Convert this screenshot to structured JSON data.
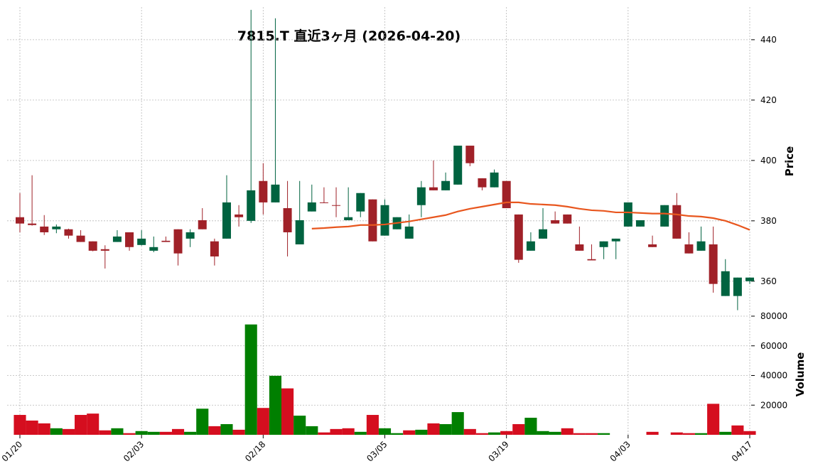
{
  "chart_data": {
    "type": "candlestick",
    "title": "7815.T  直近3ヶ月  (2026-04-20)",
    "categories": [
      "01/20",
      null,
      null,
      null,
      null,
      null,
      null,
      null,
      null,
      null,
      "02/03",
      null,
      null,
      null,
      null,
      null,
      null,
      null,
      null,
      null,
      "02/18",
      null,
      null,
      null,
      null,
      null,
      null,
      null,
      null,
      null,
      "03/05",
      null,
      null,
      null,
      null,
      null,
      null,
      null,
      null,
      null,
      "03/19",
      null,
      null,
      null,
      null,
      null,
      null,
      null,
      null,
      null,
      "04/03",
      null,
      null,
      null,
      null,
      null,
      null,
      null,
      null,
      null,
      "04/17"
    ],
    "open": [
      381.2,
      379.1,
      378.1,
      377.2,
      377.2,
      375.1,
      373.2,
      370.6,
      373.0,
      376.2,
      372.0,
      370.1,
      373.4,
      377.2,
      374.1,
      380.2,
      373.2,
      374.1,
      382.1,
      380.0,
      393.2,
      386.1,
      384.2,
      372.2,
      383.1,
      386.1,
      385.2,
      380.2,
      383.1,
      387.1,
      375.1,
      377.2,
      374.1,
      385.2,
      391.1,
      390.1,
      392.0,
      404.9,
      394.1,
      391.1,
      393.2,
      382.1,
      370.1,
      374.1,
      380.2,
      382.1,
      372.2,
      367.3,
      371.3,
      373.2,
      378.1,
      378.1,
      372.2,
      378.1,
      385.2,
      372.2,
      370.1,
      372.2,
      355.1,
      355.1,
      360.0
    ],
    "high": [
      389.2,
      395.1,
      381.9,
      378.8,
      377.4,
      376.9,
      373.2,
      371.9,
      376.9,
      376.2,
      376.9,
      374.8,
      374.8,
      377.2,
      377.2,
      384.2,
      374.1,
      395.1,
      385.2,
      449.9,
      399.1,
      447.1,
      393.2,
      393.2,
      392.0,
      391.1,
      391.1,
      391.1,
      389.2,
      387.1,
      387.1,
      381.2,
      382.1,
      393.2,
      400.0,
      396.0,
      404.9,
      404.9,
      394.1,
      397.0,
      393.2,
      382.1,
      376.2,
      384.2,
      383.1,
      382.1,
      378.1,
      372.2,
      373.2,
      374.1,
      386.1,
      380.2,
      375.1,
      385.2,
      389.2,
      376.2,
      378.1,
      378.1,
      367.3,
      361.2,
      361.2
    ],
    "low": [
      376.2,
      378.4,
      375.3,
      375.9,
      374.1,
      373.0,
      369.9,
      364.2,
      373.0,
      370.1,
      371.8,
      369.6,
      373.0,
      365.2,
      371.3,
      377.2,
      365.2,
      374.1,
      378.1,
      379.3,
      382.1,
      386.1,
      368.2,
      372.2,
      383.1,
      385.9,
      381.2,
      380.2,
      381.2,
      373.2,
      375.1,
      377.2,
      374.1,
      381.2,
      390.1,
      390.1,
      392.0,
      398.1,
      390.1,
      391.1,
      384.2,
      366.1,
      370.1,
      374.1,
      379.1,
      379.1,
      370.1,
      366.9,
      367.3,
      367.3,
      378.1,
      378.1,
      371.3,
      378.1,
      374.1,
      369.2,
      370.1,
      356.2,
      355.1,
      350.4,
      359.1
    ],
    "close": [
      379.1,
      378.6,
      376.2,
      378.1,
      375.1,
      373.0,
      370.1,
      370.1,
      374.8,
      371.3,
      374.1,
      371.3,
      373.0,
      369.2,
      376.2,
      377.2,
      368.2,
      386.1,
      381.2,
      390.1,
      386.1,
      392.0,
      376.2,
      380.2,
      386.1,
      385.9,
      385.0,
      381.2,
      389.2,
      373.2,
      385.2,
      381.2,
      378.1,
      391.1,
      390.1,
      393.2,
      404.9,
      399.1,
      391.1,
      396.0,
      384.2,
      367.1,
      373.2,
      377.2,
      379.1,
      379.1,
      370.1,
      366.9,
      373.2,
      374.1,
      386.1,
      380.2,
      371.3,
      385.2,
      374.1,
      369.2,
      373.2,
      359.1,
      363.3,
      361.2,
      361.2
    ],
    "up_color": "#006340",
    "down_color": "#a02128",
    "ma": {
      "color": "#e8561e",
      "values": [
        null,
        null,
        null,
        null,
        null,
        null,
        null,
        null,
        null,
        null,
        null,
        null,
        null,
        null,
        null,
        null,
        null,
        null,
        null,
        null,
        null,
        null,
        null,
        null,
        377.4,
        377.6,
        377.9,
        378.1,
        378.6,
        378.6,
        378.8,
        379.3,
        379.8,
        380.5,
        381.2,
        381.9,
        383.1,
        384.0,
        384.7,
        385.4,
        386.1,
        386.1,
        385.6,
        385.4,
        385.2,
        384.7,
        384.0,
        383.5,
        383.3,
        382.8,
        382.8,
        382.6,
        382.4,
        382.4,
        382.1,
        381.6,
        381.4,
        380.9,
        380.0,
        378.6,
        377.0
      ]
    },
    "ylabel": "Price",
    "ylim": [
      349.6,
      450.8
    ],
    "yticks": [
      360,
      380,
      400,
      420,
      440
    ],
    "grid": true,
    "volume": {
      "ylabel": "Volume",
      "ylim": [
        0,
        82400
      ],
      "yticks": [
        20000,
        40000,
        60000,
        80000
      ],
      "values": [
        13400,
        9600,
        7700,
        4400,
        3900,
        13400,
        14300,
        3000,
        4400,
        1100,
        2500,
        2000,
        2000,
        3900,
        2000,
        17600,
        5800,
        7200,
        3400,
        74400,
        18100,
        39800,
        31300,
        12900,
        5800,
        1600,
        3900,
        4400,
        2000,
        13400,
        4400,
        1100,
        3000,
        3400,
        7700,
        7200,
        15300,
        3900,
        1100,
        1600,
        2500,
        7200,
        11500,
        2500,
        2000,
        4400,
        1100,
        1100,
        1100,
        0,
        0,
        0,
        2000,
        0,
        1600,
        1100,
        1100,
        20900,
        2000,
        6300,
        2500
      ],
      "colors": [
        "#d50e1f",
        "#d50e1f",
        "#d50e1f",
        "#007f00",
        "#d50e1f",
        "#d50e1f",
        "#d50e1f",
        "#d50e1f",
        "#007f00",
        "#d50e1f",
        "#007f00",
        "#007f00",
        "#d50e1f",
        "#d50e1f",
        "#007f00",
        "#007f00",
        "#d50e1f",
        "#007f00",
        "#d50e1f",
        "#007f00",
        "#d50e1f",
        "#007f00",
        "#d50e1f",
        "#007f00",
        "#007f00",
        "#d50e1f",
        "#d50e1f",
        "#d50e1f",
        "#007f00",
        "#d50e1f",
        "#007f00",
        "#007f00",
        "#d50e1f",
        "#007f00",
        "#d50e1f",
        "#007f00",
        "#007f00",
        "#d50e1f",
        "#d50e1f",
        "#007f00",
        "#d50e1f",
        "#d50e1f",
        "#007f00",
        "#007f00",
        "#007f00",
        "#d50e1f",
        "#d50e1f",
        "#d50e1f",
        "#007f00",
        "#007f00",
        "#007f00",
        "#007f00",
        "#d50e1f",
        "#007f00",
        "#d50e1f",
        "#d50e1f",
        "#007f00",
        "#d50e1f",
        "#007f00",
        "#d50e1f",
        "#d50e1f"
      ]
    }
  }
}
